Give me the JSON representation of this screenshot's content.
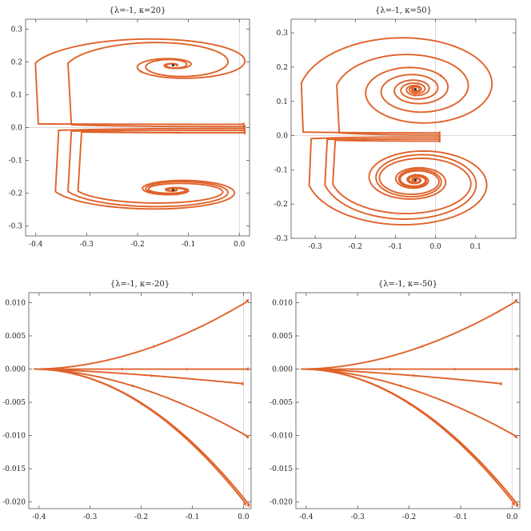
{
  "figure": {
    "background": "#ffffff",
    "curve_color": "#E0622A",
    "axis_color": "#555555",
    "origin_line_color": "#cccccc"
  },
  "chart_data": [
    {
      "type": "line",
      "title": "{λ=-1, κ=20}",
      "xlim": [
        -0.42,
        0.02
      ],
      "ylim": [
        -0.33,
        0.33
      ],
      "xticks": [
        -0.4,
        -0.3,
        -0.2,
        -0.1,
        0.0
      ],
      "xtick_labels": [
        "-0.4",
        "-0.3",
        "-0.2",
        "-0.1",
        "0.0"
      ],
      "yticks": [
        -0.3,
        -0.2,
        -0.1,
        0.0,
        0.1,
        0.2,
        0.3
      ],
      "ytick_labels": [
        "-0.3",
        "-0.2",
        "-0.1",
        "0.0",
        "0.1",
        "0.2",
        "0.3"
      ],
      "series": [
        {
          "kind": "spiral",
          "start": [
            0.01,
            0.01
          ],
          "focus": [
            -0.13,
            0.19
          ],
          "xmin": -0.405,
          "ytop": 0.3,
          "turns": 2.6,
          "arrows": [
            0.42
          ]
        },
        {
          "kind": "spiral",
          "start": [
            0.012,
            0.003
          ],
          "focus": [
            -0.13,
            0.19
          ],
          "xmin": -0.34,
          "ytop": 0.285,
          "turns": 2.6,
          "arrows": [
            0.5
          ]
        },
        {
          "kind": "spiral",
          "start": [
            0.012,
            -0.003
          ],
          "focus": [
            -0.13,
            -0.19
          ],
          "xmin": -0.365,
          "ytop": -0.27,
          "turns": 2.6,
          "arrows": [
            0.55
          ]
        },
        {
          "kind": "spiral",
          "start": [
            0.012,
            -0.009
          ],
          "focus": [
            -0.13,
            -0.19
          ],
          "xmin": -0.34,
          "ytop": -0.26,
          "turns": 2.6,
          "arrows": [
            0.55
          ]
        },
        {
          "kind": "spiral",
          "start": [
            0.012,
            -0.016
          ],
          "focus": [
            -0.13,
            -0.19
          ],
          "xmin": -0.32,
          "ytop": -0.245,
          "turns": 2.6,
          "arrows": [
            0.58
          ]
        }
      ]
    },
    {
      "type": "line",
      "title": "{λ=-1, κ=50}",
      "xlim": [
        -0.36,
        0.2
      ],
      "ylim": [
        -0.3,
        0.34
      ],
      "xticks": [
        -0.3,
        -0.2,
        -0.1,
        0.0,
        0.1
      ],
      "xtick_labels": [
        "-0.3",
        "-0.2",
        "-0.1",
        "0.0",
        "0.1"
      ],
      "yticks": [
        -0.3,
        -0.2,
        -0.1,
        0.0,
        0.1,
        0.2,
        0.3
      ],
      "ytick_labels": [
        "-0.3",
        "-0.2",
        "-0.1",
        "0.0",
        "0.1",
        "0.2",
        "0.3"
      ],
      "series": [
        {
          "kind": "spiral",
          "start": [
            0.012,
            0.008
          ],
          "focus": [
            -0.05,
            0.135
          ],
          "xmin": -0.34,
          "ytop": 0.32,
          "turns": 4.2,
          "arrows": [
            0.4,
            0.7
          ]
        },
        {
          "kind": "spiral",
          "start": [
            0.012,
            0.002
          ],
          "focus": [
            -0.05,
            0.135
          ],
          "xmin": -0.25,
          "ytop": 0.26,
          "turns": 4.2,
          "arrows": [
            0.6
          ]
        },
        {
          "kind": "spiral",
          "start": [
            0.012,
            -0.004
          ],
          "focus": [
            -0.05,
            -0.13
          ],
          "xmin": -0.32,
          "ytop": -0.29,
          "turns": 4.2,
          "arrows": [
            0.45,
            0.7
          ]
        },
        {
          "kind": "spiral",
          "start": [
            0.012,
            -0.01
          ],
          "focus": [
            -0.05,
            -0.13
          ],
          "xmin": -0.28,
          "ytop": -0.27,
          "turns": 4.2,
          "arrows": [
            0.6
          ]
        },
        {
          "kind": "spiral",
          "start": [
            0.012,
            -0.016
          ],
          "focus": [
            -0.05,
            -0.13
          ],
          "xmin": -0.26,
          "ytop": -0.25,
          "turns": 4.2,
          "arrows": [
            0.62
          ]
        }
      ]
    },
    {
      "type": "line",
      "title": "{λ=-1, κ=-20}",
      "xlim": [
        -0.42,
        0.015
      ],
      "ylim": [
        -0.021,
        0.0115
      ],
      "xticks": [
        -0.4,
        -0.3,
        -0.2,
        -0.1,
        0.0
      ],
      "xtick_labels": [
        "-0.4",
        "-0.3",
        "-0.2",
        "-0.1",
        "0.0"
      ],
      "yticks": [
        -0.02,
        -0.015,
        -0.01,
        -0.005,
        0.0,
        0.005,
        0.01
      ],
      "ytick_labels": [
        "-0.020",
        "-0.015",
        "-0.010",
        "-0.005",
        "0.000",
        "0.005",
        "0.010"
      ],
      "series": [
        {
          "kind": "flow",
          "start": [
            0.01,
            0.0103
          ],
          "node": [
            -0.41,
            0.0
          ],
          "k": 1.9,
          "arrows": [
            0.45
          ]
        },
        {
          "kind": "flow",
          "start": [
            0.01,
            0.0
          ],
          "node": [
            -0.41,
            0.0
          ],
          "k": 1.0,
          "arrows": [
            0.3,
            0.6
          ]
        },
        {
          "kind": "flow",
          "start": [
            0.0,
            -0.0022
          ],
          "node": [
            -0.41,
            0.0
          ],
          "k": 1.4,
          "arrows": [
            0.45
          ]
        },
        {
          "kind": "flow",
          "start": [
            0.01,
            -0.0102
          ],
          "node": [
            -0.41,
            0.0
          ],
          "k": 1.8,
          "arrows": [
            0.55
          ]
        },
        {
          "kind": "flow",
          "start": [
            0.005,
            -0.0203
          ],
          "node": [
            -0.41,
            0.0
          ],
          "k": 2.0,
          "arrows": [
            0.5
          ]
        },
        {
          "kind": "flow",
          "start": [
            0.012,
            -0.0205
          ],
          "node": [
            -0.41,
            0.0
          ],
          "k": 2.0,
          "arrows": []
        }
      ]
    },
    {
      "type": "line",
      "title": "{λ=-1, κ=-50}",
      "xlim": [
        -0.42,
        0.015
      ],
      "ylim": [
        -0.021,
        0.0115
      ],
      "xticks": [
        -0.4,
        -0.3,
        -0.2,
        -0.1,
        0.0
      ],
      "xtick_labels": [
        "-0.4",
        "-0.3",
        "-0.2",
        "-0.1",
        "0.0"
      ],
      "yticks": [
        -0.02,
        -0.015,
        -0.01,
        -0.005,
        0.0,
        0.005,
        0.01
      ],
      "ytick_labels": [
        "-0.020",
        "-0.015",
        "-0.010",
        "-0.005",
        "0.000",
        "0.005",
        "0.010"
      ],
      "series": [
        {
          "kind": "flow",
          "start": [
            0.01,
            0.0103
          ],
          "node": [
            -0.41,
            0.0
          ],
          "k": 1.9,
          "arrows": [
            0.45
          ]
        },
        {
          "kind": "flow",
          "start": [
            0.01,
            0.0
          ],
          "node": [
            -0.41,
            0.0
          ],
          "k": 1.0,
          "arrows": [
            0.3,
            0.6
          ]
        },
        {
          "kind": "flow",
          "start": [
            -0.02,
            -0.0022
          ],
          "node": [
            -0.41,
            0.0
          ],
          "k": 1.4,
          "arrows": [
            0.45
          ]
        },
        {
          "kind": "flow",
          "start": [
            0.01,
            -0.0102
          ],
          "node": [
            -0.41,
            0.0
          ],
          "k": 1.8,
          "arrows": [
            0.55
          ]
        },
        {
          "kind": "flow",
          "start": [
            0.005,
            -0.0203
          ],
          "node": [
            -0.41,
            0.0
          ],
          "k": 2.0,
          "arrows": [
            0.5
          ]
        },
        {
          "kind": "flow",
          "start": [
            0.012,
            -0.0205
          ],
          "node": [
            -0.41,
            0.0
          ],
          "k": 2.0,
          "arrows": []
        }
      ]
    }
  ]
}
